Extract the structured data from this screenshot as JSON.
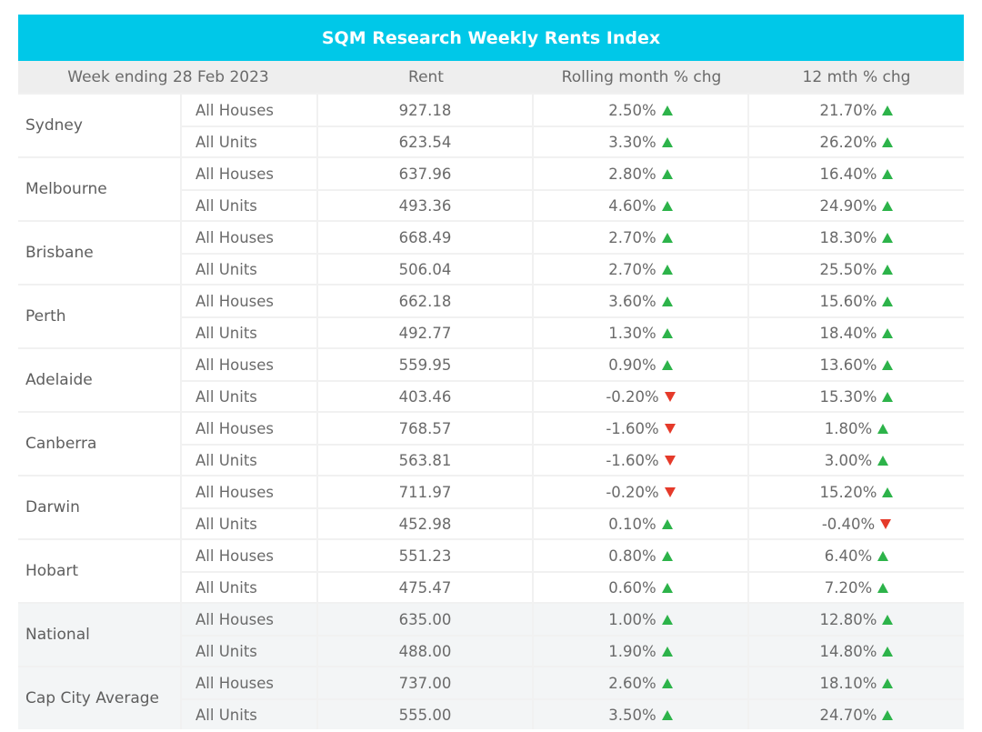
{
  "title": "SQM Research Weekly Rents Index",
  "colors": {
    "title_bg": "#00c8e8",
    "up": "#2db34a",
    "down": "#e53a2a"
  },
  "headers": {
    "week": "Week ending 28 Feb 2023",
    "rent": "Rent",
    "rolling": "Rolling month % chg",
    "yearly": "12 mth % chg"
  },
  "groups": [
    {
      "city": "Sydney",
      "rows": [
        {
          "type": "All Houses",
          "rent": "927.18",
          "rolling": "2.50%",
          "rolling_dir": "up",
          "yearly": "21.70%",
          "yearly_dir": "up"
        },
        {
          "type": "All Units",
          "rent": "623.54",
          "rolling": "3.30%",
          "rolling_dir": "up",
          "yearly": "26.20%",
          "yearly_dir": "up"
        }
      ]
    },
    {
      "city": "Melbourne",
      "rows": [
        {
          "type": "All Houses",
          "rent": "637.96",
          "rolling": "2.80%",
          "rolling_dir": "up",
          "yearly": "16.40%",
          "yearly_dir": "up"
        },
        {
          "type": "All Units",
          "rent": "493.36",
          "rolling": "4.60%",
          "rolling_dir": "up",
          "yearly": "24.90%",
          "yearly_dir": "up"
        }
      ]
    },
    {
      "city": "Brisbane",
      "rows": [
        {
          "type": "All Houses",
          "rent": "668.49",
          "rolling": "2.70%",
          "rolling_dir": "up",
          "yearly": "18.30%",
          "yearly_dir": "up"
        },
        {
          "type": "All Units",
          "rent": "506.04",
          "rolling": "2.70%",
          "rolling_dir": "up",
          "yearly": "25.50%",
          "yearly_dir": "up"
        }
      ]
    },
    {
      "city": "Perth",
      "rows": [
        {
          "type": "All Houses",
          "rent": "662.18",
          "rolling": "3.60%",
          "rolling_dir": "up",
          "yearly": "15.60%",
          "yearly_dir": "up"
        },
        {
          "type": "All Units",
          "rent": "492.77",
          "rolling": "1.30%",
          "rolling_dir": "up",
          "yearly": "18.40%",
          "yearly_dir": "up"
        }
      ]
    },
    {
      "city": "Adelaide",
      "rows": [
        {
          "type": "All Houses",
          "rent": "559.95",
          "rolling": "0.90%",
          "rolling_dir": "up",
          "yearly": "13.60%",
          "yearly_dir": "up"
        },
        {
          "type": "All Units",
          "rent": "403.46",
          "rolling": "-0.20%",
          "rolling_dir": "down",
          "yearly": "15.30%",
          "yearly_dir": "up"
        }
      ]
    },
    {
      "city": "Canberra",
      "rows": [
        {
          "type": "All Houses",
          "rent": "768.57",
          "rolling": "-1.60%",
          "rolling_dir": "down",
          "yearly": "1.80%",
          "yearly_dir": "up"
        },
        {
          "type": "All Units",
          "rent": "563.81",
          "rolling": "-1.60%",
          "rolling_dir": "down",
          "yearly": "3.00%",
          "yearly_dir": "up"
        }
      ]
    },
    {
      "city": "Darwin",
      "rows": [
        {
          "type": "All Houses",
          "rent": "711.97",
          "rolling": "-0.20%",
          "rolling_dir": "down",
          "yearly": "15.20%",
          "yearly_dir": "up"
        },
        {
          "type": "All Units",
          "rent": "452.98",
          "rolling": "0.10%",
          "rolling_dir": "up",
          "yearly": "-0.40%",
          "yearly_dir": "down"
        }
      ]
    },
    {
      "city": "Hobart",
      "rows": [
        {
          "type": "All Houses",
          "rent": "551.23",
          "rolling": "0.80%",
          "rolling_dir": "up",
          "yearly": "6.40%",
          "yearly_dir": "up"
        },
        {
          "type": "All Units",
          "rent": "475.47",
          "rolling": "0.60%",
          "rolling_dir": "up",
          "yearly": "7.20%",
          "yearly_dir": "up"
        }
      ]
    },
    {
      "city": "National",
      "shaded": true,
      "rows": [
        {
          "type": "All Houses",
          "rent": "635.00",
          "rolling": "1.00%",
          "rolling_dir": "up",
          "yearly": "12.80%",
          "yearly_dir": "up"
        },
        {
          "type": "All Units",
          "rent": "488.00",
          "rolling": "1.90%",
          "rolling_dir": "up",
          "yearly": "14.80%",
          "yearly_dir": "up"
        }
      ]
    },
    {
      "city": "Cap City Average",
      "shaded": true,
      "rows": [
        {
          "type": "All Houses",
          "rent": "737.00",
          "rolling": "2.60%",
          "rolling_dir": "up",
          "yearly": "18.10%",
          "yearly_dir": "up"
        },
        {
          "type": "All Units",
          "rent": "555.00",
          "rolling": "3.50%",
          "rolling_dir": "up",
          "yearly": "24.70%",
          "yearly_dir": "up"
        }
      ]
    }
  ]
}
